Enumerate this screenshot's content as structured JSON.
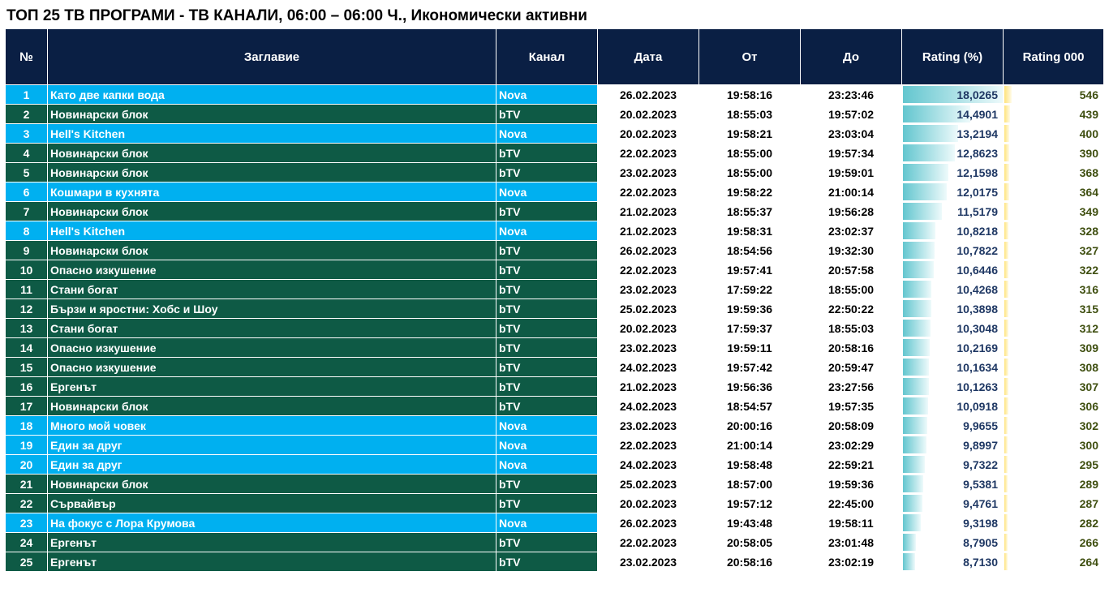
{
  "title": "ТОП 25 ТВ ПРОГРАМИ - ТВ КАНАЛИ, 06:00 – 06:00 Ч., Икономически активни",
  "headers": [
    "№",
    "Заглавие",
    "Канал",
    "Дата",
    "От",
    "До",
    "Rating (%)",
    "Rating 000"
  ],
  "colors": {
    "header": "#0a1f44",
    "nova": "#00b0f0",
    "btv": "#0e5a45"
  },
  "rows": [
    {
      "n": "1",
      "title": "Като две капки вода",
      "channel": "Nova",
      "date": "26.02.2023",
      "from": "19:58:16",
      "to": "23:23:46",
      "rating": "18,0265",
      "r000": "546"
    },
    {
      "n": "2",
      "title": "Новинарски блок",
      "channel": "bTV",
      "date": "20.02.2023",
      "from": "18:55:03",
      "to": "19:57:02",
      "rating": "14,4901",
      "r000": "439"
    },
    {
      "n": "3",
      "title": "Hell's Kitchen",
      "channel": "Nova",
      "date": "20.02.2023",
      "from": "19:58:21",
      "to": "23:03:04",
      "rating": "13,2194",
      "r000": "400"
    },
    {
      "n": "4",
      "title": "Новинарски блок",
      "channel": "bTV",
      "date": "22.02.2023",
      "from": "18:55:00",
      "to": "19:57:34",
      "rating": "12,8623",
      "r000": "390"
    },
    {
      "n": "5",
      "title": "Новинарски блок",
      "channel": "bTV",
      "date": "23.02.2023",
      "from": "18:55:00",
      "to": "19:59:01",
      "rating": "12,1598",
      "r000": "368"
    },
    {
      "n": "6",
      "title": "Кошмари в кухнята",
      "channel": "Nova",
      "date": "22.02.2023",
      "from": "19:58:22",
      "to": "21:00:14",
      "rating": "12,0175",
      "r000": "364"
    },
    {
      "n": "7",
      "title": "Новинарски блок",
      "channel": "bTV",
      "date": "21.02.2023",
      "from": "18:55:37",
      "to": "19:56:28",
      "rating": "11,5179",
      "r000": "349"
    },
    {
      "n": "8",
      "title": "Hell's Kitchen",
      "channel": "Nova",
      "date": "21.02.2023",
      "from": "19:58:31",
      "to": "23:02:37",
      "rating": "10,8218",
      "r000": "328"
    },
    {
      "n": "9",
      "title": "Новинарски блок",
      "channel": "bTV",
      "date": "26.02.2023",
      "from": "18:54:56",
      "to": "19:32:30",
      "rating": "10,7822",
      "r000": "327"
    },
    {
      "n": "10",
      "title": "Опасно изкушение",
      "channel": "bTV",
      "date": "22.02.2023",
      "from": "19:57:41",
      "to": "20:57:58",
      "rating": "10,6446",
      "r000": "322"
    },
    {
      "n": "11",
      "title": "Стани богат",
      "channel": "bTV",
      "date": "23.02.2023",
      "from": "17:59:22",
      "to": "18:55:00",
      "rating": "10,4268",
      "r000": "316"
    },
    {
      "n": "12",
      "title": "Бързи и яростни: Хобс и Шоу",
      "channel": "bTV",
      "date": "25.02.2023",
      "from": "19:59:36",
      "to": "22:50:22",
      "rating": "10,3898",
      "r000": "315"
    },
    {
      "n": "13",
      "title": "Стани богат",
      "channel": "bTV",
      "date": "20.02.2023",
      "from": "17:59:37",
      "to": "18:55:03",
      "rating": "10,3048",
      "r000": "312"
    },
    {
      "n": "14",
      "title": "Опасно изкушение",
      "channel": "bTV",
      "date": "23.02.2023",
      "from": "19:59:11",
      "to": "20:58:16",
      "rating": "10,2169",
      "r000": "309"
    },
    {
      "n": "15",
      "title": "Опасно изкушение",
      "channel": "bTV",
      "date": "24.02.2023",
      "from": "19:57:42",
      "to": "20:59:47",
      "rating": "10,1634",
      "r000": "308"
    },
    {
      "n": "16",
      "title": "Ергенът",
      "channel": "bTV",
      "date": "21.02.2023",
      "from": "19:56:36",
      "to": "23:27:56",
      "rating": "10,1263",
      "r000": "307"
    },
    {
      "n": "17",
      "title": "Новинарски блок",
      "channel": "bTV",
      "date": "24.02.2023",
      "from": "18:54:57",
      "to": "19:57:35",
      "rating": "10,0918",
      "r000": "306"
    },
    {
      "n": "18",
      "title": "Много мой човек",
      "channel": "Nova",
      "date": "23.02.2023",
      "from": "20:00:16",
      "to": "20:58:09",
      "rating": "9,9655",
      "r000": "302"
    },
    {
      "n": "19",
      "title": "Един за друг",
      "channel": "Nova",
      "date": "22.02.2023",
      "from": "21:00:14",
      "to": "23:02:29",
      "rating": "9,8997",
      "r000": "300"
    },
    {
      "n": "20",
      "title": "Един за друг",
      "channel": "Nova",
      "date": "24.02.2023",
      "from": "19:58:48",
      "to": "22:59:21",
      "rating": "9,7322",
      "r000": "295"
    },
    {
      "n": "21",
      "title": "Новинарски блок",
      "channel": "bTV",
      "date": "25.02.2023",
      "from": "18:57:00",
      "to": "19:59:36",
      "rating": "9,5381",
      "r000": "289"
    },
    {
      "n": "22",
      "title": "Сървайвър",
      "channel": "bTV",
      "date": "20.02.2023",
      "from": "19:57:12",
      "to": "22:45:00",
      "rating": "9,4761",
      "r000": "287"
    },
    {
      "n": "23",
      "title": "На фокус с Лора Крумова",
      "channel": "Nova",
      "date": "26.02.2023",
      "from": "19:43:48",
      "to": "19:58:11",
      "rating": "9,3198",
      "r000": "282"
    },
    {
      "n": "24",
      "title": "Ергенът",
      "channel": "bTV",
      "date": "22.02.2023",
      "from": "20:58:05",
      "to": "23:01:48",
      "rating": "8,7905",
      "r000": "266"
    },
    {
      "n": "25",
      "title": "Ергенът",
      "channel": "bTV",
      "date": "23.02.2023",
      "from": "20:58:16",
      "to": "23:02:19",
      "rating": "8,7130",
      "r000": "264"
    }
  ]
}
